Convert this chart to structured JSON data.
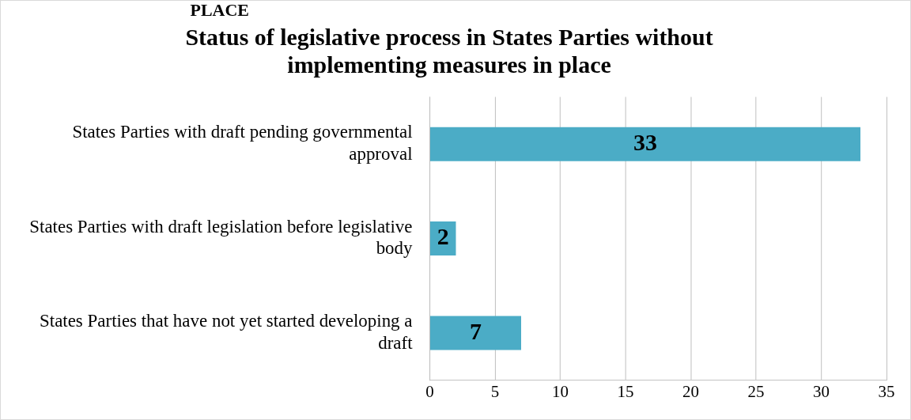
{
  "chart_data": {
    "type": "bar",
    "orientation": "horizontal",
    "title": "Status of legislative process in States Parties without implementing measures in place",
    "categories": [
      "States Parties with draft pending governmental approval",
      "States Parties with draft legislation before legislative body",
      "States Parties that have not yet started developing a draft"
    ],
    "values": [
      33,
      2,
      7
    ],
    "color": "#4bacc6",
    "data_labels": true,
    "xlim": [
      0,
      35
    ],
    "xticks": [
      0,
      5,
      10,
      15,
      20,
      25,
      30,
      35
    ],
    "grid": "x",
    "legend": false,
    "annotations": [
      "PLACE"
    ]
  }
}
